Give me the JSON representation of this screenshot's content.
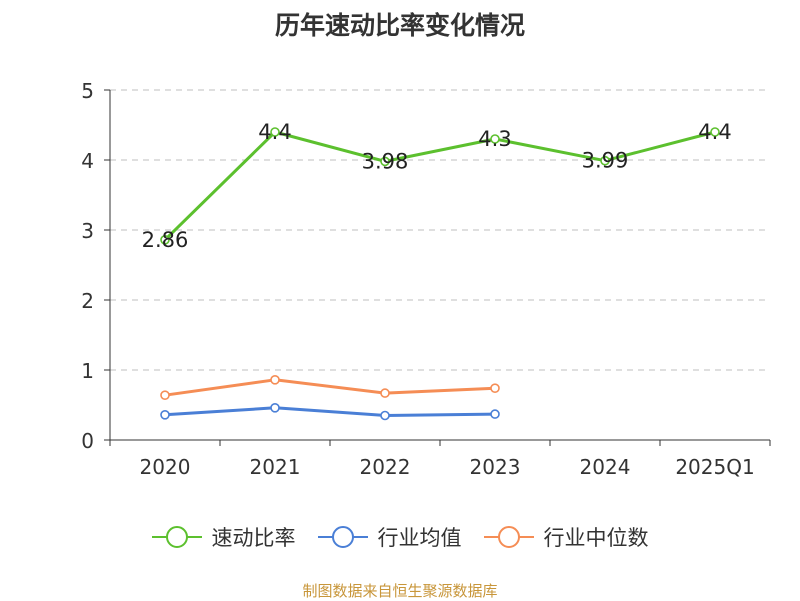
{
  "chart_data": {
    "type": "line",
    "title": "历年速动比率变化情况",
    "categories": [
      "2020",
      "2021",
      "2022",
      "2023",
      "2024",
      "2025Q1"
    ],
    "y_ticks": [
      "0",
      "1",
      "2",
      "3",
      "4",
      "5"
    ],
    "ylim": [
      0,
      5
    ],
    "grid": true,
    "legend_position": "bottom",
    "series": [
      {
        "name": "速动比率",
        "color": "#5cc02e",
        "values": [
          2.86,
          4.4,
          3.98,
          4.3,
          3.99,
          4.4
        ],
        "labels": [
          "2.86",
          "4.4",
          "3.98",
          "4.3",
          "3.99",
          "4.4"
        ]
      },
      {
        "name": "行业均值",
        "color": "#4a7fd6",
        "values": [
          0.36,
          0.46,
          0.35,
          0.37,
          null,
          null
        ]
      },
      {
        "name": "行业中位数",
        "color": "#f58d55",
        "values": [
          0.64,
          0.86,
          0.67,
          0.74,
          null,
          null
        ]
      }
    ]
  },
  "source_note": "制图数据来自恒生聚源数据库"
}
